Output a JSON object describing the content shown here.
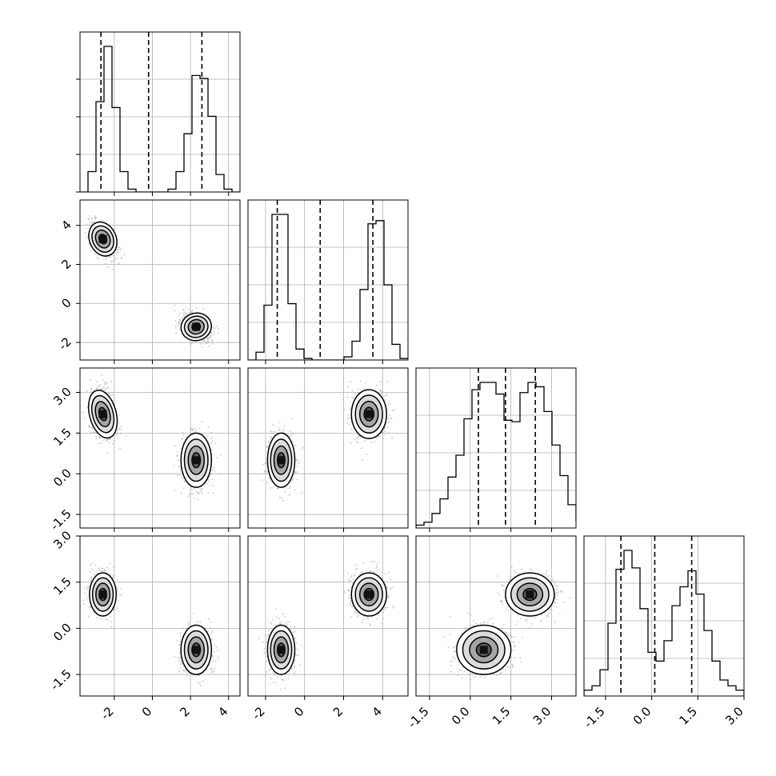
{
  "figure": {
    "type": "corner-plot",
    "grid": true,
    "background": "#ffffff",
    "colors": {
      "ink": "#000000",
      "grid": "#b0b0b0",
      "scatter": "#9a9a9a"
    }
  },
  "chart_data": {
    "type": "corner",
    "parameters": 4,
    "axis_ranges": [
      [
        -3.8,
        4.6
      ],
      [
        -2.9,
        5.3
      ],
      [
        -2.0,
        3.9
      ],
      [
        -2.2,
        3.0
      ]
    ],
    "tick_labels": [
      [
        "-2",
        "0",
        "2",
        "4"
      ],
      [
        "-2",
        "0",
        "2",
        "4"
      ],
      [
        "-1.5",
        "0.0",
        "1.5",
        "3.0"
      ],
      [
        "-1.5",
        "0.0",
        "1.5",
        "3.0"
      ]
    ],
    "tick_values": [
      [
        -2,
        0,
        2,
        4
      ],
      [
        -2,
        0,
        2,
        4
      ],
      [
        -1.5,
        0.0,
        1.5,
        3.0
      ],
      [
        -1.5,
        0.0,
        1.5,
        3.0
      ]
    ],
    "quantiles": [
      [
        -2.7,
        -0.2,
        2.6
      ],
      [
        -1.4,
        0.8,
        3.5
      ],
      [
        0.3,
        1.3,
        2.4
      ],
      [
        -1.0,
        0.1,
        1.3
      ]
    ],
    "modes": [
      {
        "center": [
          -2.6,
          3.3,
          2.2,
          1.1
        ],
        "sd": [
          0.35,
          0.45,
          0.45,
          0.35
        ],
        "rho": {
          "0-1": -0.55,
          "0-2": -0.35
        }
      },
      {
        "center": [
          2.3,
          -1.2,
          0.5,
          -0.7
        ],
        "sd": [
          0.4,
          0.35,
          0.5,
          0.4
        ],
        "rho": {
          "0-1": -0.35
        }
      }
    ],
    "histograms": [
      {
        "bin_start": -3.8,
        "bin_width": 0.42,
        "counts": [
          0,
          0.14,
          0.62,
          1.0,
          0.58,
          0.14,
          0.02,
          0,
          0,
          0,
          0,
          0.02,
          0.14,
          0.4,
          0.8,
          0.78,
          0.52,
          0.12,
          0.02,
          0
        ]
      },
      {
        "bin_start": -2.9,
        "bin_width": 0.41,
        "counts": [
          0,
          0.05,
          0.35,
          0.93,
          0.93,
          0.36,
          0.07,
          0.01,
          0,
          0,
          0,
          0,
          0.02,
          0.12,
          0.45,
          0.87,
          0.89,
          0.48,
          0.1,
          0.01
        ]
      },
      {
        "bin_start": -2.0,
        "bin_width": 0.295,
        "counts": [
          0.02,
          0.04,
          0.1,
          0.2,
          0.35,
          0.5,
          0.75,
          0.95,
          1.0,
          1.0,
          0.92,
          0.74,
          0.73,
          0.93,
          1.0,
          0.97,
          0.8,
          0.57,
          0.36,
          0.16,
          0.05,
          0.02
        ]
      },
      {
        "bin_start": -2.2,
        "bin_width": 0.26,
        "counts": [
          0.04,
          0.07,
          0.18,
          0.5,
          0.87,
          1.0,
          0.88,
          0.6,
          0.3,
          0.24,
          0.38,
          0.62,
          0.75,
          0.86,
          0.7,
          0.45,
          0.24,
          0.11,
          0.07,
          0.04
        ]
      }
    ]
  }
}
